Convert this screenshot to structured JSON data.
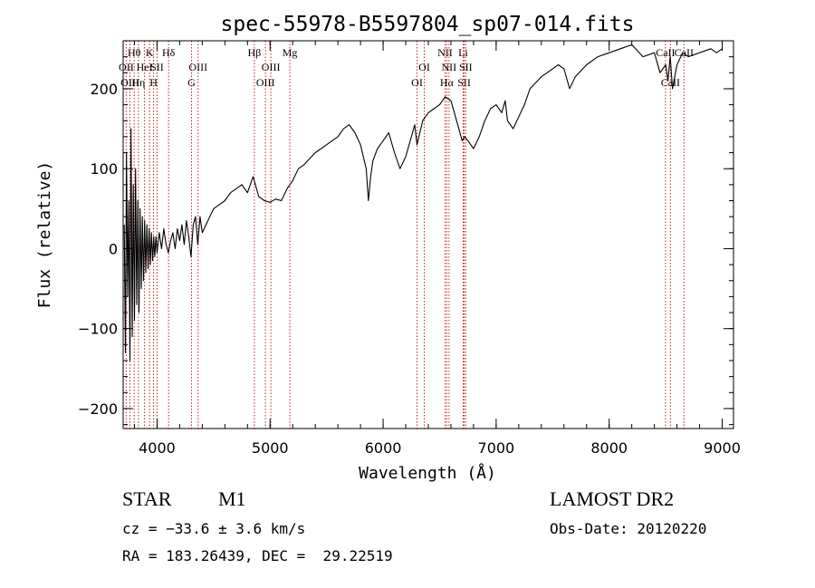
{
  "chart_data": {
    "type": "line",
    "title": "spec-55978-B5597804_sp07-014.fits",
    "xlabel": "Wavelength (Å)",
    "ylabel": "Flux (relative)",
    "xlim": [
      3700,
      9100
    ],
    "ylim": [
      -225,
      260
    ],
    "xticks": [
      {
        "value": 4000,
        "label": "4000"
      },
      {
        "value": 5000,
        "label": "5000"
      },
      {
        "value": 6000,
        "label": "6000"
      },
      {
        "value": 7000,
        "label": "7000"
      },
      {
        "value": 8000,
        "label": "8000"
      },
      {
        "value": 9000,
        "label": "9000"
      }
    ],
    "yticks": [
      {
        "value": -200,
        "label": "−200"
      },
      {
        "value": -100,
        "label": "−100"
      },
      {
        "value": 0,
        "label": "0"
      },
      {
        "value": 100,
        "label": "100"
      },
      {
        "value": 200,
        "label": "200"
      }
    ],
    "series": [
      {
        "name": "flux",
        "x": [
          3710,
          3720,
          3730,
          3740,
          3750,
          3760,
          3770,
          3780,
          3790,
          3800,
          3810,
          3820,
          3830,
          3840,
          3850,
          3860,
          3870,
          3880,
          3890,
          3900,
          3910,
          3920,
          3930,
          3940,
          3950,
          3960,
          3970,
          3980,
          3990,
          4000,
          4020,
          4040,
          4060,
          4080,
          4100,
          4120,
          4140,
          4160,
          4180,
          4200,
          4220,
          4240,
          4260,
          4280,
          4300,
          4320,
          4340,
          4360,
          4380,
          4400,
          4450,
          4500,
          4550,
          4600,
          4650,
          4700,
          4750,
          4800,
          4850,
          4880,
          4900,
          4950,
          5000,
          5050,
          5100,
          5150,
          5200,
          5250,
          5300,
          5400,
          5500,
          5600,
          5650,
          5700,
          5750,
          5800,
          5850,
          5870,
          5890,
          5910,
          5950,
          6000,
          6050,
          6100,
          6150,
          6200,
          6250,
          6280,
          6300,
          6350,
          6400,
          6450,
          6500,
          6550,
          6600,
          6650,
          6700,
          6720,
          6750,
          6800,
          6850,
          6900,
          6950,
          7000,
          7050,
          7080,
          7100,
          7150,
          7200,
          7250,
          7300,
          7400,
          7500,
          7550,
          7600,
          7650,
          7700,
          7800,
          7900,
          8000,
          8100,
          8200,
          8300,
          8400,
          8450,
          8500,
          8520,
          8540,
          8560,
          8600,
          8650,
          8700,
          8800,
          8900,
          8950,
          9000
        ],
        "values": [
          30,
          -130,
          120,
          -60,
          60,
          -140,
          150,
          -110,
          80,
          -90,
          100,
          -70,
          60,
          -80,
          50,
          -50,
          40,
          -40,
          35,
          -30,
          30,
          -25,
          25,
          -20,
          20,
          -15,
          15,
          -10,
          15,
          -5,
          20,
          0,
          25,
          5,
          -5,
          10,
          20,
          0,
          25,
          10,
          30,
          5,
          35,
          15,
          -10,
          30,
          40,
          5,
          40,
          20,
          35,
          50,
          55,
          60,
          70,
          75,
          80,
          70,
          90,
          75,
          65,
          60,
          58,
          62,
          60,
          75,
          85,
          100,
          105,
          120,
          130,
          140,
          150,
          155,
          145,
          130,
          100,
          60,
          90,
          110,
          125,
          135,
          145,
          120,
          100,
          115,
          140,
          155,
          130,
          160,
          170,
          175,
          180,
          190,
          185,
          160,
          135,
          140,
          135,
          125,
          140,
          160,
          175,
          180,
          170,
          185,
          160,
          150,
          165,
          180,
          200,
          215,
          225,
          230,
          225,
          200,
          215,
          230,
          240,
          245,
          250,
          255,
          240,
          245,
          220,
          230,
          210,
          240,
          200,
          230,
          245,
          240,
          245,
          250,
          245,
          250
        ]
      }
    ],
    "lines": [
      {
        "name": "Hθ",
        "wl": 3798,
        "row": 0
      },
      {
        "name": "Hη",
        "wl": 3835,
        "row": 2
      },
      {
        "name": "HeI",
        "wl": 3889,
        "row": 1
      },
      {
        "name": "K",
        "wl": 3934,
        "row": 0
      },
      {
        "name": "H",
        "wl": 3969,
        "row": 2
      },
      {
        "name": "SII",
        "wl": 4000,
        "row": 1
      },
      {
        "name": "Hδ",
        "wl": 4102,
        "row": 0
      },
      {
        "name": "G",
        "wl": 4305,
        "row": 2
      },
      {
        "name": "OIII",
        "wl": 4363,
        "row": 1
      },
      {
        "name": "Hβ",
        "wl": 4861,
        "row": 0
      },
      {
        "name": "OIII",
        "wl": 4959,
        "row": 2
      },
      {
        "name": "OIII",
        "wl": 5007,
        "row": 1
      },
      {
        "name": "Mg",
        "wl": 5175,
        "row": 0
      },
      {
        "name": "OI",
        "wl": 6300,
        "row": 2
      },
      {
        "name": "OI",
        "wl": 6364,
        "row": 1
      },
      {
        "name": "NII",
        "wl": 6548,
        "row": 0
      },
      {
        "name": "Hα",
        "wl": 6563,
        "row": 2
      },
      {
        "name": "NII",
        "wl": 6583,
        "row": 1
      },
      {
        "name": "Li",
        "wl": 6708,
        "row": 0
      },
      {
        "name": "SII",
        "wl": 6717,
        "row": 2
      },
      {
        "name": "SII",
        "wl": 6731,
        "row": 1
      },
      {
        "name": "CaII",
        "wl": 8498,
        "row": 0
      },
      {
        "name": "CaII",
        "wl": 8542,
        "row": 2
      },
      {
        "name": "CaII",
        "wl": 8662,
        "row": 0
      },
      {
        "name": "OII",
        "wl": 3727,
        "row": 1
      },
      {
        "name": "OIII",
        "wl": 3760,
        "row": 2
      }
    ]
  },
  "info": {
    "object_class": "STAR",
    "subclass": "M1",
    "survey": "LAMOST DR2",
    "cz": "cz = −33.6 ± 3.6 km/s",
    "obs_date": "Obs-Date: 20120220",
    "coords": "RA = 183.26439, DEC =  29.22519"
  },
  "colors": {
    "line_marker": "#cc2222",
    "spectrum": "#000000",
    "axis": "#000000"
  }
}
